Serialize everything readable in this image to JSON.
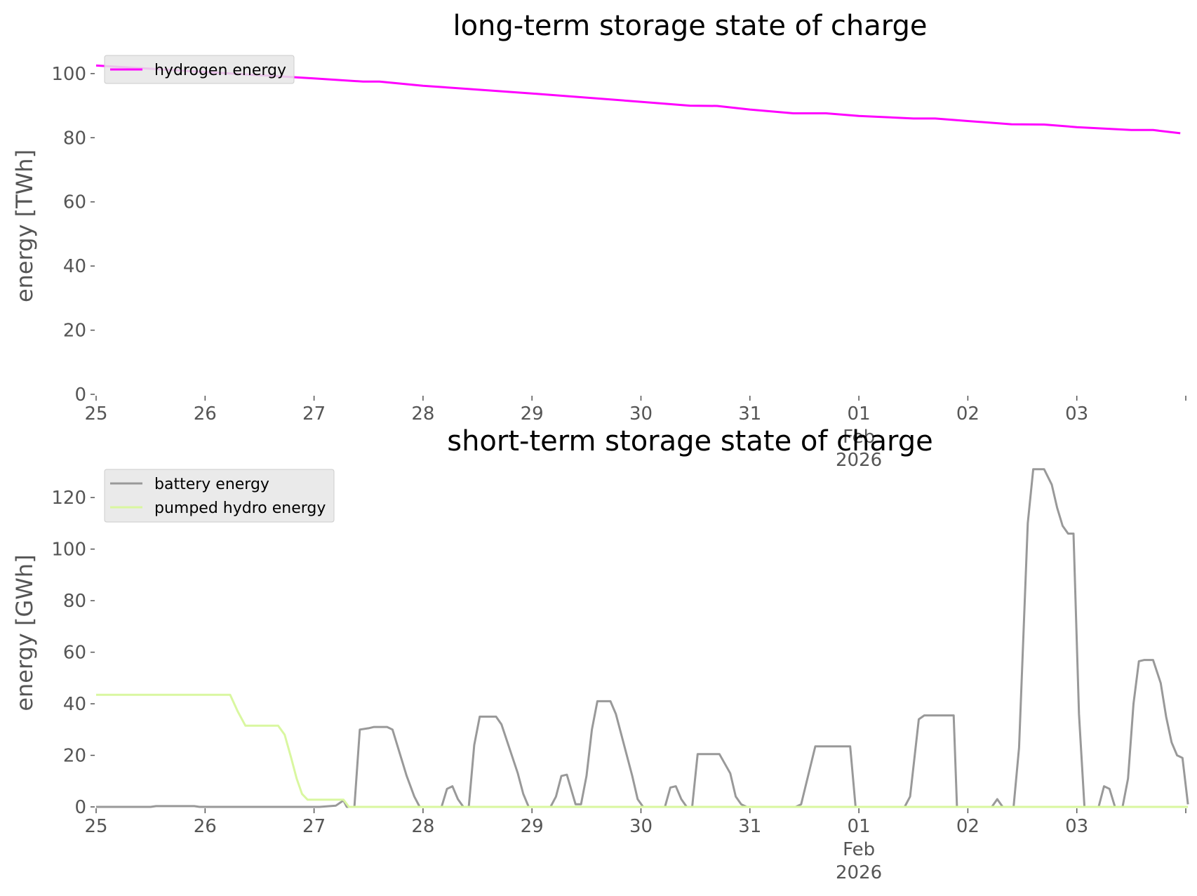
{
  "chart_data": [
    {
      "type": "line",
      "title": "long-term storage state of charge",
      "xlabel": "",
      "ylabel": "energy [TWh]",
      "ylim": [
        0,
        105
      ],
      "yticks": [
        0,
        20,
        40,
        60,
        80,
        100
      ],
      "xlim": [
        "2026-01-25",
        "2026-02-04"
      ],
      "xticks": [
        "25",
        "26",
        "27",
        "28",
        "29",
        "30",
        "31",
        "01",
        "02",
        "03"
      ],
      "xtick_extra": [
        "Feb",
        "2026"
      ],
      "grid": false,
      "legend_position": "upper-left",
      "series": [
        {
          "name": "hydrogen energy",
          "color": "#ff00ff",
          "points": [
            [
              0,
              102.5
            ],
            [
              1,
              100.5
            ],
            [
              2,
              98.5
            ],
            [
              2.45,
              97.5
            ],
            [
              2.6,
              97.5
            ],
            [
              3,
              96.2
            ],
            [
              4,
              93.8
            ],
            [
              5,
              91.2
            ],
            [
              5.45,
              90.0
            ],
            [
              5.7,
              89.9
            ],
            [
              6,
              88.8
            ],
            [
              6.4,
              87.6
            ],
            [
              6.7,
              87.6
            ],
            [
              7,
              86.8
            ],
            [
              7.5,
              86.0
            ],
            [
              7.7,
              86.0
            ],
            [
              8,
              85.2
            ],
            [
              8.4,
              84.2
            ],
            [
              8.7,
              84.1
            ],
            [
              9,
              83.3
            ],
            [
              9.5,
              82.4
            ],
            [
              9.7,
              82.4
            ],
            [
              9.95,
              81.4
            ]
          ]
        }
      ]
    },
    {
      "type": "line",
      "title": "short-term storage state of charge",
      "xlabel": "",
      "ylabel": "energy [GWh]",
      "ylim": [
        0,
        135
      ],
      "yticks": [
        0,
        20,
        40,
        60,
        80,
        100,
        120
      ],
      "xlim": [
        "2026-01-25",
        "2026-02-04"
      ],
      "xticks": [
        "25",
        "26",
        "27",
        "28",
        "29",
        "30",
        "31",
        "01",
        "02",
        "03"
      ],
      "xtick_extra": [
        "Feb",
        "2026"
      ],
      "grid": false,
      "legend_position": "upper-left",
      "series": [
        {
          "name": "battery energy",
          "color": "#999999",
          "points": [
            [
              0,
              0
            ],
            [
              0.5,
              0
            ],
            [
              0.55,
              0.3
            ],
            [
              0.9,
              0.3
            ],
            [
              0.95,
              0
            ],
            [
              2.05,
              0
            ],
            [
              2.2,
              0.5
            ],
            [
              2.27,
              2.5
            ],
            [
              2.3,
              0
            ],
            [
              2.37,
              0
            ],
            [
              2.42,
              30
            ],
            [
              2.5,
              30.5
            ],
            [
              2.55,
              31
            ],
            [
              2.67,
              31
            ],
            [
              2.72,
              30
            ],
            [
              2.85,
              12
            ],
            [
              2.92,
              4
            ],
            [
              2.97,
              0
            ],
            [
              3.17,
              0
            ],
            [
              3.22,
              7
            ],
            [
              3.27,
              8
            ],
            [
              3.32,
              3
            ],
            [
              3.37,
              0
            ],
            [
              3.42,
              0
            ],
            [
              3.47,
              24
            ],
            [
              3.52,
              35
            ],
            [
              3.67,
              35
            ],
            [
              3.72,
              32
            ],
            [
              3.87,
              13
            ],
            [
              3.92,
              5
            ],
            [
              3.97,
              0
            ],
            [
              4.17,
              0
            ],
            [
              4.22,
              4
            ],
            [
              4.27,
              12
            ],
            [
              4.32,
              12.5
            ],
            [
              4.4,
              1
            ],
            [
              4.45,
              1
            ],
            [
              4.5,
              12
            ],
            [
              4.55,
              30
            ],
            [
              4.6,
              41
            ],
            [
              4.72,
              41
            ],
            [
              4.77,
              36
            ],
            [
              4.92,
              12
            ],
            [
              4.97,
              3
            ],
            [
              5.02,
              0
            ],
            [
              5.22,
              0
            ],
            [
              5.27,
              7.5
            ],
            [
              5.32,
              8
            ],
            [
              5.37,
              3
            ],
            [
              5.42,
              0
            ],
            [
              5.47,
              0
            ],
            [
              5.52,
              20.5
            ],
            [
              5.67,
              20.5
            ],
            [
              5.72,
              20.5
            ],
            [
              5.82,
              13
            ],
            [
              5.87,
              4
            ],
            [
              5.92,
              1
            ],
            [
              5.97,
              0
            ],
            [
              6.42,
              0
            ],
            [
              6.47,
              1
            ],
            [
              6.6,
              23.5
            ],
            [
              6.92,
              23.5
            ],
            [
              6.97,
              0
            ],
            [
              7.42,
              0
            ],
            [
              7.47,
              4
            ],
            [
              7.55,
              34
            ],
            [
              7.6,
              35.5
            ],
            [
              7.87,
              35.5
            ],
            [
              7.9,
              0
            ],
            [
              8.22,
              0
            ],
            [
              8.27,
              3
            ],
            [
              8.32,
              0
            ],
            [
              8.42,
              0
            ],
            [
              8.47,
              23
            ],
            [
              8.55,
              110
            ],
            [
              8.6,
              131
            ],
            [
              8.7,
              131
            ],
            [
              8.77,
              125
            ],
            [
              8.82,
              116
            ],
            [
              8.87,
              109
            ],
            [
              8.92,
              106
            ],
            [
              8.97,
              106
            ],
            [
              9.02,
              36
            ],
            [
              9.07,
              0
            ],
            [
              9.2,
              0
            ],
            [
              9.25,
              8
            ],
            [
              9.3,
              7
            ],
            [
              9.35,
              0
            ],
            [
              9.42,
              0
            ],
            [
              9.47,
              11
            ],
            [
              9.52,
              40
            ],
            [
              9.57,
              56.5
            ],
            [
              9.62,
              57
            ],
            [
              9.7,
              57
            ],
            [
              9.77,
              48
            ],
            [
              9.82,
              35
            ],
            [
              9.87,
              25
            ],
            [
              9.92,
              20
            ],
            [
              9.97,
              19
            ],
            [
              10.02,
              1
            ]
          ]
        },
        {
          "name": "pumped hydro energy",
          "color": "#d9f7a0",
          "points": [
            [
              0,
              43.5
            ],
            [
              1.23,
              43.5
            ],
            [
              1.3,
              37
            ],
            [
              1.37,
              31.5
            ],
            [
              1.67,
              31.5
            ],
            [
              1.73,
              28
            ],
            [
              1.79,
              19
            ],
            [
              1.84,
              11
            ],
            [
              1.89,
              5
            ],
            [
              1.94,
              2.8
            ],
            [
              2.22,
              2.8
            ],
            [
              2.27,
              2.8
            ],
            [
              2.32,
              0
            ],
            [
              10.02,
              0
            ]
          ]
        }
      ]
    }
  ]
}
